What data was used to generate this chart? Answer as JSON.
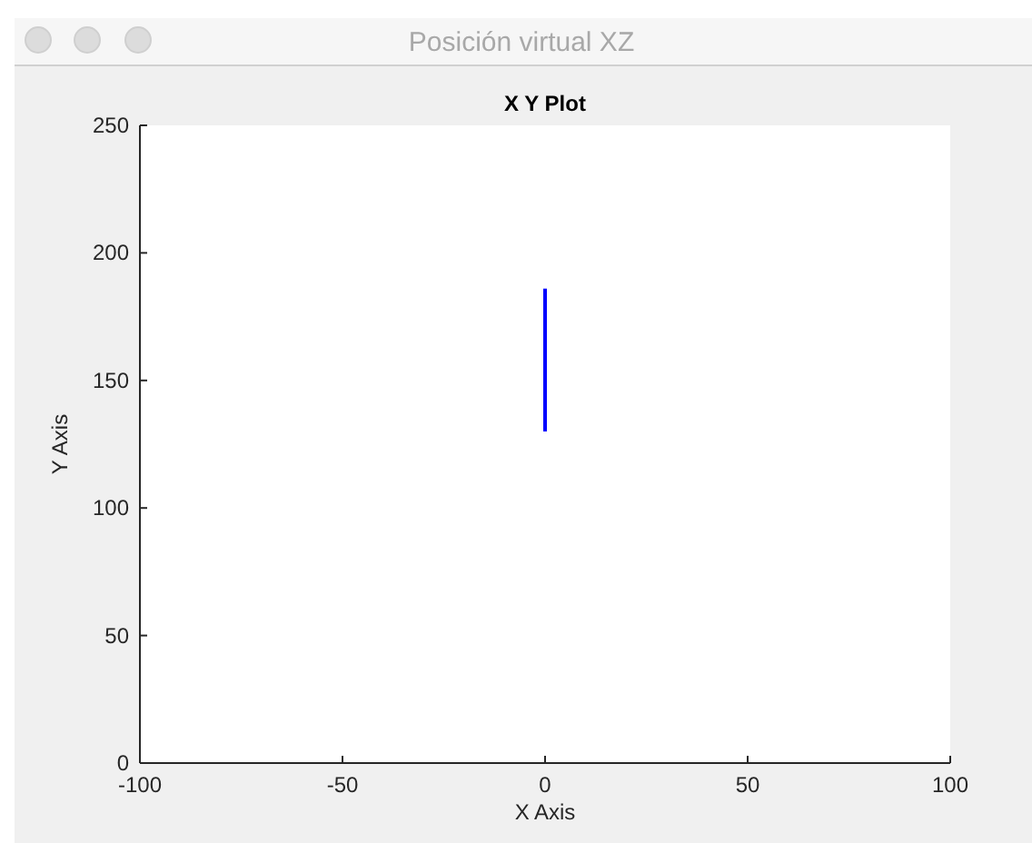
{
  "chart_data": {
    "type": "line",
    "title": "Posición virtual XZ",
    "subtitle": "X Y Plot",
    "xlabel": "X Axis",
    "ylabel": "Y Axis",
    "x": [
      0,
      0
    ],
    "series": [
      {
        "color": "#0000ff",
        "values": [
          130,
          186
        ]
      }
    ],
    "xlim": [
      -100,
      100
    ],
    "xticks": [
      -100,
      -50,
      0,
      50,
      100
    ],
    "ylim": [
      0,
      250
    ],
    "yticks": [
      0,
      50,
      100,
      150,
      200,
      250
    ],
    "grid": false,
    "marker": "none",
    "line_style": "solid"
  }
}
